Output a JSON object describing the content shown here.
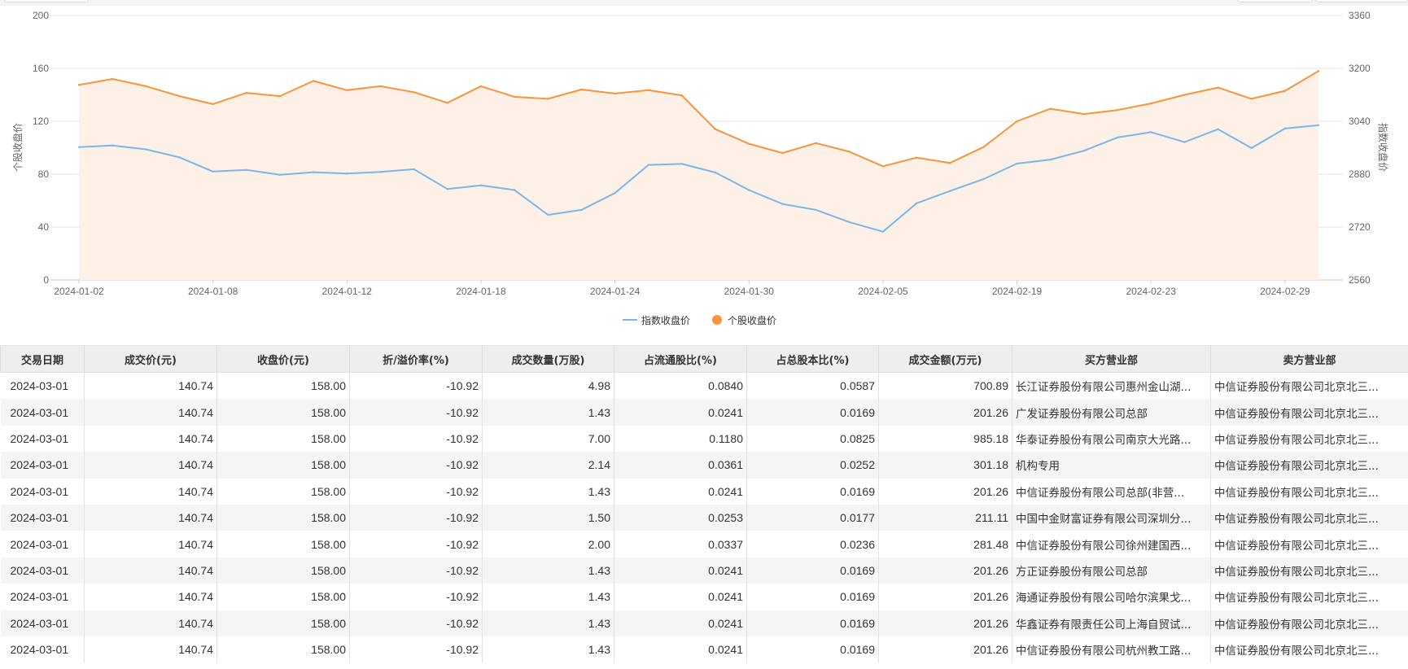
{
  "chart_data": {
    "type": "line",
    "x": [
      "2024-01-02",
      "2024-01-03",
      "2024-01-04",
      "2024-01-05",
      "2024-01-08",
      "2024-01-09",
      "2024-01-10",
      "2024-01-11",
      "2024-01-12",
      "2024-01-15",
      "2024-01-16",
      "2024-01-17",
      "2024-01-18",
      "2024-01-19",
      "2024-01-22",
      "2024-01-23",
      "2024-01-24",
      "2024-01-25",
      "2024-01-26",
      "2024-01-29",
      "2024-01-30",
      "2024-01-31",
      "2024-02-01",
      "2024-02-02",
      "2024-02-05",
      "2024-02-06",
      "2024-02-07",
      "2024-02-08",
      "2024-02-19",
      "2024-02-20",
      "2024-02-21",
      "2024-02-22",
      "2024-02-23",
      "2024-02-26",
      "2024-02-27",
      "2024-02-28",
      "2024-02-29",
      "2024-03-01"
    ],
    "x_tick_labels": [
      "2024-01-02",
      "2024-01-08",
      "2024-01-12",
      "2024-01-18",
      "2024-01-24",
      "2024-01-30",
      "2024-02-05",
      "2024-02-19",
      "2024-02-23",
      "2024-02-29"
    ],
    "left_axis": {
      "label": "个股收盘价",
      "ticks": [
        "0",
        "40",
        "80",
        "120",
        "160",
        "200"
      ],
      "range": [
        0,
        200
      ]
    },
    "right_axis": {
      "label": "指数收盘价",
      "ticks": [
        "2560",
        "2720",
        "2880",
        "3040",
        "3200",
        "3360"
      ],
      "range": [
        2560,
        3360
      ]
    },
    "series": [
      {
        "name": "指数收盘价",
        "axis": "right",
        "color": "#7cb5ec",
        "values": [
          2962,
          2967,
          2955,
          2931,
          2888,
          2893,
          2878,
          2886,
          2882,
          2887,
          2895,
          2835,
          2846,
          2832,
          2757,
          2772,
          2823,
          2908,
          2911,
          2885,
          2832,
          2790,
          2772,
          2735,
          2706,
          2792,
          2829,
          2865,
          2912,
          2924,
          2951,
          2991,
          3007,
          2977,
          3016,
          2959,
          3018,
          3028
        ]
      },
      {
        "name": "个股收盘价",
        "axis": "left",
        "color": "#f7943c",
        "fill": "#fdf1e7",
        "values": [
          147.5,
          152,
          146.5,
          139,
          133,
          141.5,
          139,
          150.5,
          143.5,
          146.5,
          142,
          134,
          146.5,
          138.5,
          137,
          144,
          141,
          143.5,
          139.5,
          114,
          103,
          96,
          103.5,
          97,
          86,
          92.5,
          88.5,
          100.5,
          120,
          129.5,
          125.5,
          128.5,
          133.5,
          140,
          145.5,
          137,
          143,
          158
        ]
      }
    ],
    "legend": [
      "指数收盘价",
      "个股收盘价"
    ],
    "legend_position": "bottom-center",
    "grid": true
  },
  "table": {
    "columns": [
      "交易日期",
      "成交价(元)",
      "收盘价(元)",
      "折/溢价率(%)",
      "成交数量(万股)",
      "占流通股比(%)",
      "占总股本比(%)",
      "成交金额(万元)",
      "买方营业部",
      "卖方营业部"
    ],
    "rows": [
      [
        "2024-03-01",
        "140.74",
        "158.00",
        "-10.92",
        "4.98",
        "0.0840",
        "0.0587",
        "700.89",
        "长江证券股份有限公司惠州金山湖...",
        "中信证券股份有限公司北京北三..."
      ],
      [
        "2024-03-01",
        "140.74",
        "158.00",
        "-10.92",
        "1.43",
        "0.0241",
        "0.0169",
        "201.26",
        "广发证券股份有限公司总部",
        "中信证券股份有限公司北京北三..."
      ],
      [
        "2024-03-01",
        "140.74",
        "158.00",
        "-10.92",
        "7.00",
        "0.1180",
        "0.0825",
        "985.18",
        "华泰证券股份有限公司南京大光路...",
        "中信证券股份有限公司北京北三..."
      ],
      [
        "2024-03-01",
        "140.74",
        "158.00",
        "-10.92",
        "2.14",
        "0.0361",
        "0.0252",
        "301.18",
        "机构专用",
        "中信证券股份有限公司北京北三..."
      ],
      [
        "2024-03-01",
        "140.74",
        "158.00",
        "-10.92",
        "1.43",
        "0.0241",
        "0.0169",
        "201.26",
        "中信证券股份有限公司总部(非营...",
        "中信证券股份有限公司北京北三..."
      ],
      [
        "2024-03-01",
        "140.74",
        "158.00",
        "-10.92",
        "1.50",
        "0.0253",
        "0.0177",
        "211.11",
        "中国中金财富证券有限公司深圳分...",
        "中信证券股份有限公司北京北三..."
      ],
      [
        "2024-03-01",
        "140.74",
        "158.00",
        "-10.92",
        "2.00",
        "0.0337",
        "0.0236",
        "281.48",
        "中信证券股份有限公司徐州建国西...",
        "中信证券股份有限公司北京北三..."
      ],
      [
        "2024-03-01",
        "140.74",
        "158.00",
        "-10.92",
        "1.43",
        "0.0241",
        "0.0169",
        "201.26",
        "方正证券股份有限公司总部",
        "中信证券股份有限公司北京北三..."
      ],
      [
        "2024-03-01",
        "140.74",
        "158.00",
        "-10.92",
        "1.43",
        "0.0241",
        "0.0169",
        "201.26",
        "海通证券股份有限公司哈尔滨果戈...",
        "中信证券股份有限公司北京北三..."
      ],
      [
        "2024-03-01",
        "140.74",
        "158.00",
        "-10.92",
        "1.43",
        "0.0241",
        "0.0169",
        "201.26",
        "华鑫证券有限责任公司上海自贸试...",
        "中信证券股份有限公司北京北三..."
      ],
      [
        "2024-03-01",
        "140.74",
        "158.00",
        "-10.92",
        "1.43",
        "0.0241",
        "0.0169",
        "201.26",
        "中信证券股份有限公司杭州教工路...",
        "中信证券股份有限公司北京北三..."
      ]
    ]
  }
}
